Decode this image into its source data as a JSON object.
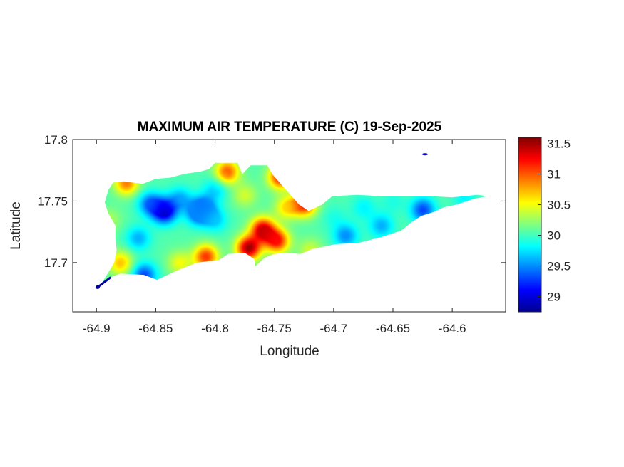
{
  "chart_data": {
    "type": "heatmap",
    "title": "MAXIMUM AIR TEMPERATURE (C) 19-Sep-2025",
    "xlabel": "Longitude",
    "ylabel": "Latitude",
    "xlim": [
      -64.92,
      -64.555
    ],
    "ylim": [
      17.66,
      17.8
    ],
    "x_ticks": [
      -64.9,
      -64.85,
      -64.8,
      -64.75,
      -64.7,
      -64.65,
      -64.6
    ],
    "x_tick_labels": [
      "-64.9",
      "-64.85",
      "-64.8",
      "-64.75",
      "-64.7",
      "-64.65",
      "-64.6"
    ],
    "y_ticks": [
      17.7,
      17.75,
      17.8
    ],
    "y_tick_labels": [
      "17.7",
      "17.75",
      "17.8"
    ],
    "colormap": "jet",
    "colorbar": {
      "min": 28.75,
      "max": 31.6,
      "ticks": [
        29,
        29.5,
        30,
        30.5,
        31,
        31.5
      ],
      "tick_labels": [
        "29",
        "29.5",
        "30",
        "30.5",
        "31",
        "31.5"
      ],
      "placement": "right"
    },
    "grid": false,
    "region_outline": [
      [
        -64.897,
        17.681
      ],
      [
        -64.888,
        17.688
      ],
      [
        -64.88,
        17.691
      ],
      [
        -64.86,
        17.69
      ],
      [
        -64.849,
        17.686
      ],
      [
        -64.831,
        17.694
      ],
      [
        -64.815,
        17.7
      ],
      [
        -64.797,
        17.702
      ],
      [
        -64.789,
        17.707
      ],
      [
        -64.775,
        17.708
      ],
      [
        -64.767,
        17.703
      ],
      [
        -64.766,
        17.697
      ],
      [
        -64.758,
        17.704
      ],
      [
        -64.75,
        17.707
      ],
      [
        -64.741,
        17.708
      ],
      [
        -64.728,
        17.707
      ],
      [
        -64.718,
        17.711
      ],
      [
        -64.698,
        17.715
      ],
      [
        -64.679,
        17.716
      ],
      [
        -64.659,
        17.721
      ],
      [
        -64.643,
        17.726
      ],
      [
        -64.634,
        17.733
      ],
      [
        -64.626,
        17.738
      ],
      [
        -64.616,
        17.741
      ],
      [
        -64.607,
        17.745
      ],
      [
        -64.597,
        17.747
      ],
      [
        -64.581,
        17.752
      ],
      [
        -64.57,
        17.754
      ],
      [
        -64.579,
        17.755
      ],
      [
        -64.6,
        17.753
      ],
      [
        -64.618,
        17.754
      ],
      [
        -64.64,
        17.754
      ],
      [
        -64.66,
        17.754
      ],
      [
        -64.68,
        17.755
      ],
      [
        -64.701,
        17.754
      ],
      [
        -64.71,
        17.747
      ],
      [
        -64.721,
        17.742
      ],
      [
        -64.729,
        17.747
      ],
      [
        -64.74,
        17.759
      ],
      [
        -64.751,
        17.771
      ],
      [
        -64.756,
        17.779
      ],
      [
        -64.763,
        17.779
      ],
      [
        -64.77,
        17.779
      ],
      [
        -64.777,
        17.772
      ],
      [
        -64.781,
        17.781
      ],
      [
        -64.789,
        17.781
      ],
      [
        -64.8,
        17.781
      ],
      [
        -64.805,
        17.776
      ],
      [
        -64.812,
        17.774
      ],
      [
        -64.826,
        17.772
      ],
      [
        -64.838,
        17.769
      ],
      [
        -64.85,
        17.768
      ],
      [
        -64.861,
        17.764
      ],
      [
        -64.877,
        17.766
      ],
      [
        -64.886,
        17.765
      ],
      [
        -64.89,
        17.759
      ],
      [
        -64.893,
        17.749
      ],
      [
        -64.89,
        17.74
      ],
      [
        -64.884,
        17.73
      ],
      [
        -64.884,
        17.72
      ],
      [
        -64.883,
        17.71
      ],
      [
        -64.885,
        17.7
      ],
      [
        -64.89,
        17.692
      ]
    ],
    "outlying_points": [
      {
        "lon": -64.899,
        "lat": 17.68,
        "value": 28.8
      },
      {
        "lon": -64.623,
        "lat": 17.788,
        "value": 28.9
      }
    ],
    "field_features": [
      {
        "lon": -64.843,
        "lat": 17.742,
        "value": 28.9
      },
      {
        "lon": -64.855,
        "lat": 17.748,
        "value": 29.4
      },
      {
        "lon": -64.81,
        "lat": 17.745,
        "value": 29.4
      },
      {
        "lon": -64.815,
        "lat": 17.74,
        "value": 29.5
      },
      {
        "lon": -64.865,
        "lat": 17.72,
        "value": 29.6
      },
      {
        "lon": -64.8,
        "lat": 17.76,
        "value": 29.7
      },
      {
        "lon": -64.83,
        "lat": 17.752,
        "value": 29.6
      },
      {
        "lon": -64.86,
        "lat": 17.69,
        "value": 29.3
      },
      {
        "lon": -64.8,
        "lat": 17.735,
        "value": 29.7
      },
      {
        "lon": -64.69,
        "lat": 17.722,
        "value": 29.5
      },
      {
        "lon": -64.66,
        "lat": 17.73,
        "value": 29.6
      },
      {
        "lon": -64.625,
        "lat": 17.743,
        "value": 29.3
      },
      {
        "lon": -64.7,
        "lat": 17.737,
        "value": 29.9
      },
      {
        "lon": -64.675,
        "lat": 17.745,
        "value": 29.8
      },
      {
        "lon": -64.65,
        "lat": 17.75,
        "value": 29.9
      },
      {
        "lon": -64.59,
        "lat": 17.753,
        "value": 29.8
      },
      {
        "lon": -64.76,
        "lat": 17.727,
        "value": 31.4
      },
      {
        "lon": -64.772,
        "lat": 17.712,
        "value": 31.5
      },
      {
        "lon": -64.748,
        "lat": 17.718,
        "value": 31.2
      },
      {
        "lon": -64.808,
        "lat": 17.705,
        "value": 31.1
      },
      {
        "lon": -64.79,
        "lat": 17.774,
        "value": 31.0
      },
      {
        "lon": -64.745,
        "lat": 17.77,
        "value": 31.2
      },
      {
        "lon": -64.725,
        "lat": 17.748,
        "value": 31.2
      },
      {
        "lon": -64.875,
        "lat": 17.765,
        "value": 30.9
      },
      {
        "lon": -64.88,
        "lat": 17.7,
        "value": 30.7
      },
      {
        "lon": -64.83,
        "lat": 17.7,
        "value": 30.5
      },
      {
        "lon": -64.72,
        "lat": 17.71,
        "value": 30.4
      },
      {
        "lon": -64.775,
        "lat": 17.755,
        "value": 30.4
      },
      {
        "lon": -64.74,
        "lat": 17.745,
        "value": 30.6
      },
      {
        "lon": -64.89,
        "lat": 17.735,
        "value": 30.3
      }
    ],
    "background_value": 30.05
  }
}
